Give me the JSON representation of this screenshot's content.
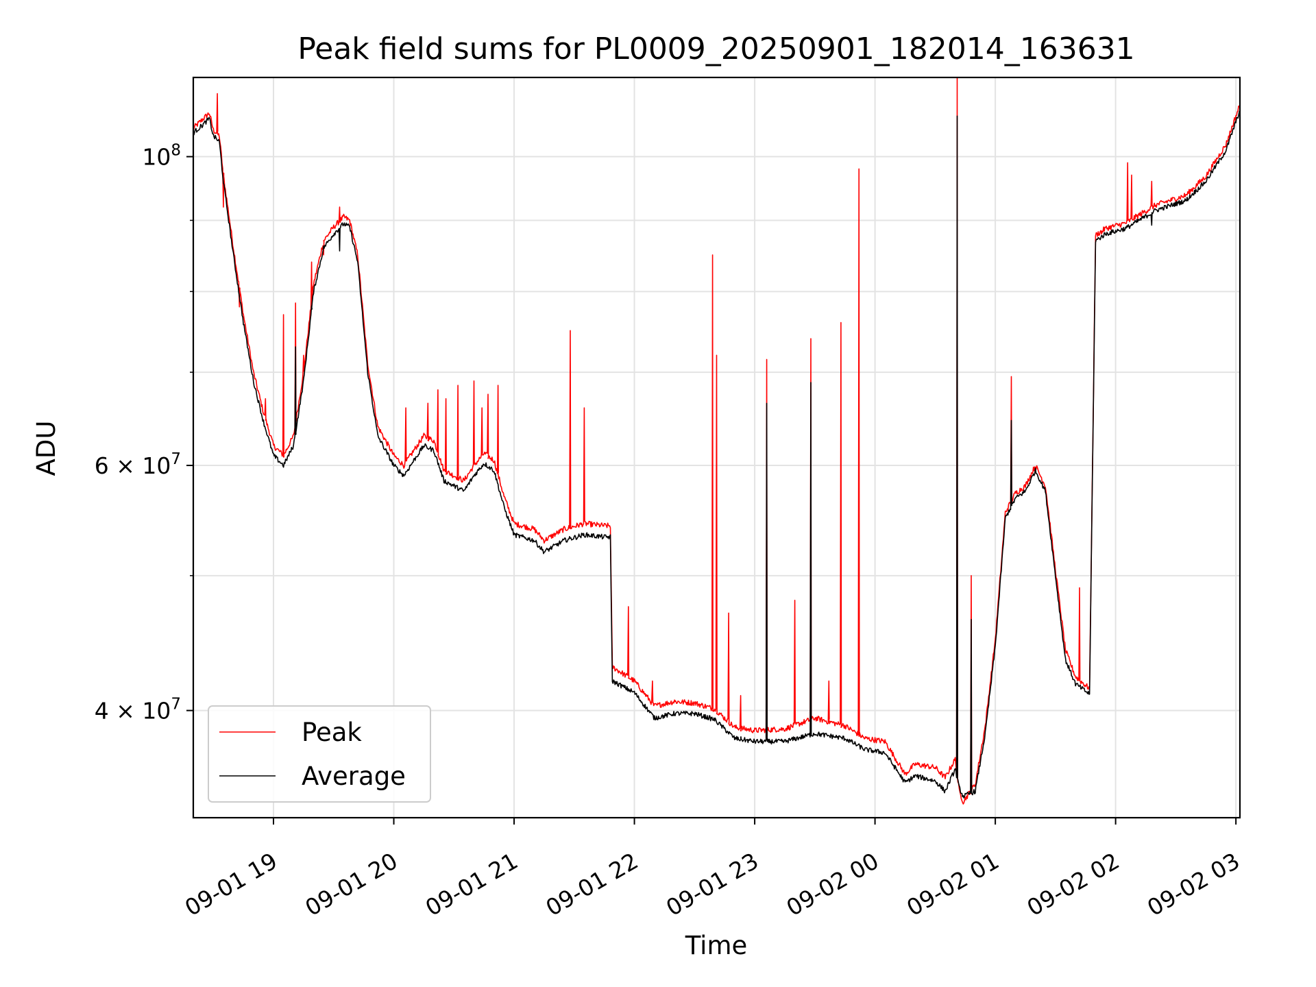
{
  "chart_data": {
    "type": "line",
    "title": "Peak field sums for PL0009_20250901_182014_163631",
    "xlabel": "Time",
    "ylabel": "ADU",
    "yscale": "log",
    "ylim": [
      33500000,
      114000000
    ],
    "xlim": [
      "2025-09-01 18:20",
      "2025-09-02 03:02"
    ],
    "grid": true,
    "legend_position": "lower-left",
    "x_ticks": [
      {
        "t": "2025-09-01 19:00",
        "label": "09-01 19"
      },
      {
        "t": "2025-09-01 20:00",
        "label": "09-01 20"
      },
      {
        "t": "2025-09-01 21:00",
        "label": "09-01 21"
      },
      {
        "t": "2025-09-01 22:00",
        "label": "09-01 22"
      },
      {
        "t": "2025-09-01 23:00",
        "label": "09-01 23"
      },
      {
        "t": "2025-09-02 00:00",
        "label": "09-02 00"
      },
      {
        "t": "2025-09-02 01:00",
        "label": "09-02 01"
      },
      {
        "t": "2025-09-02 02:00",
        "label": "09-02 02"
      },
      {
        "t": "2025-09-02 03:00",
        "label": "09-02 03"
      }
    ],
    "y_major_ticks": [
      {
        "v": 100000000,
        "base": "10",
        "exp": "8"
      },
      {
        "v": 60000000,
        "base": "6 × 10",
        "exp": "7"
      },
      {
        "v": 40000000,
        "base": "4 × 10",
        "exp": "7"
      }
    ],
    "y_minor_ticks": [
      90000000,
      80000000,
      70000000,
      50000000
    ],
    "series": [
      {
        "name": "Average",
        "color": "#000000",
        "points": [
          [
            "2025-09-01 18:20",
            104000000
          ],
          [
            "2025-09-01 18:25",
            105500000
          ],
          [
            "2025-09-01 18:28",
            106500000
          ],
          [
            "2025-09-01 18:30",
            103500000
          ],
          [
            "2025-09-01 18:33",
            102500000
          ],
          [
            "2025-09-01 18:35",
            96000000
          ],
          [
            "2025-09-01 18:40",
            85000000
          ],
          [
            "2025-09-01 18:45",
            76000000
          ],
          [
            "2025-09-01 18:50",
            69000000
          ],
          [
            "2025-09-01 18:55",
            64500000
          ],
          [
            "2025-09-01 19:00",
            61000000
          ],
          [
            "2025-09-01 19:05",
            60000000
          ],
          [
            "2025-09-01 19:10",
            62000000
          ],
          [
            "2025-09-01 19:15",
            69000000
          ],
          [
            "2025-09-01 19:20",
            80000000
          ],
          [
            "2025-09-01 19:25",
            86000000
          ],
          [
            "2025-09-01 19:30",
            88000000
          ],
          [
            "2025-09-01 19:35",
            89500000
          ],
          [
            "2025-09-01 19:38",
            89000000
          ],
          [
            "2025-09-01 19:42",
            84000000
          ],
          [
            "2025-09-01 19:47",
            70000000
          ],
          [
            "2025-09-01 19:52",
            63000000
          ],
          [
            "2025-09-01 20:00",
            60000000
          ],
          [
            "2025-09-01 20:05",
            59000000
          ],
          [
            "2025-09-01 20:10",
            60500000
          ],
          [
            "2025-09-01 20:15",
            62000000
          ],
          [
            "2025-09-01 20:20",
            61500000
          ],
          [
            "2025-09-01 20:25",
            58500000
          ],
          [
            "2025-09-01 20:30",
            58000000
          ],
          [
            "2025-09-01 20:35",
            57500000
          ],
          [
            "2025-09-01 20:40",
            59000000
          ],
          [
            "2025-09-01 20:45",
            60200000
          ],
          [
            "2025-09-01 20:50",
            59500000
          ],
          [
            "2025-09-01 20:55",
            56000000
          ],
          [
            "2025-09-01 21:00",
            53500000
          ],
          [
            "2025-09-01 21:10",
            53000000
          ],
          [
            "2025-09-01 21:15",
            52000000
          ],
          [
            "2025-09-01 21:25",
            53000000
          ],
          [
            "2025-09-01 21:35",
            53500000
          ],
          [
            "2025-09-01 21:45",
            53300000
          ],
          [
            "2025-09-01 21:48",
            53300000
          ],
          [
            "2025-09-01 21:49",
            42000000
          ],
          [
            "2025-09-01 22:00",
            41200000
          ],
          [
            "2025-09-01 22:10",
            39500000
          ],
          [
            "2025-09-01 22:20",
            39800000
          ],
          [
            "2025-09-01 22:30",
            39800000
          ],
          [
            "2025-09-01 22:40",
            39400000
          ],
          [
            "2025-09-01 22:50",
            38200000
          ],
          [
            "2025-09-01 23:00",
            38000000
          ],
          [
            "2025-09-01 23:15",
            38000000
          ],
          [
            "2025-09-01 23:30",
            38500000
          ],
          [
            "2025-09-01 23:45",
            38200000
          ],
          [
            "2025-09-01 23:55",
            37500000
          ],
          [
            "2025-09-02 00:05",
            37300000
          ],
          [
            "2025-09-02 00:15",
            35500000
          ],
          [
            "2025-09-02 00:20",
            35900000
          ],
          [
            "2025-09-02 00:30",
            35600000
          ],
          [
            "2025-09-02 00:35",
            35000000
          ],
          [
            "2025-09-02 00:40",
            36300000
          ],
          [
            "2025-09-02 00:42",
            35200000
          ],
          [
            "2025-09-02 00:44",
            34700000
          ],
          [
            "2025-09-02 00:50",
            35000000
          ],
          [
            "2025-09-02 00:55",
            38500000
          ],
          [
            "2025-09-02 01:00",
            44500000
          ],
          [
            "2025-09-02 01:05",
            55000000
          ],
          [
            "2025-09-02 01:10",
            56800000
          ],
          [
            "2025-09-02 01:15",
            57500000
          ],
          [
            "2025-09-02 01:20",
            59500000
          ],
          [
            "2025-09-02 01:25",
            57500000
          ],
          [
            "2025-09-02 01:30",
            50000000
          ],
          [
            "2025-09-02 01:35",
            43500000
          ],
          [
            "2025-09-02 01:40",
            41800000
          ],
          [
            "2025-09-02 01:45",
            41300000
          ],
          [
            "2025-09-02 01:47",
            41100000
          ],
          [
            "2025-09-02 01:50",
            87000000
          ],
          [
            "2025-09-02 01:55",
            88000000
          ],
          [
            "2025-09-02 02:05",
            88800000
          ],
          [
            "2025-09-02 02:20",
            91500000
          ],
          [
            "2025-09-02 02:35",
            93000000
          ],
          [
            "2025-09-02 02:45",
            96000000
          ],
          [
            "2025-09-02 02:55",
            101000000
          ],
          [
            "2025-09-02 03:02",
            108000000
          ]
        ]
      },
      {
        "name": "Peak",
        "color": "#ff0000",
        "points": [
          [
            "2025-09-01 18:20",
            104800000
          ],
          [
            "2025-09-01 18:25",
            106500000
          ],
          [
            "2025-09-01 18:28",
            107500000
          ],
          [
            "2025-09-01 18:30",
            104500000
          ],
          [
            "2025-09-01 18:33",
            103500000
          ],
          [
            "2025-09-01 18:35",
            97000000
          ],
          [
            "2025-09-01 18:40",
            86000000
          ],
          [
            "2025-09-01 18:45",
            77000000
          ],
          [
            "2025-09-01 18:50",
            70000000
          ],
          [
            "2025-09-01 18:55",
            65500000
          ],
          [
            "2025-09-01 19:00",
            62000000
          ],
          [
            "2025-09-01 19:05",
            61000000
          ],
          [
            "2025-09-01 19:10",
            63000000
          ],
          [
            "2025-09-01 19:15",
            70000000
          ],
          [
            "2025-09-01 19:20",
            81000000
          ],
          [
            "2025-09-01 19:25",
            87000000
          ],
          [
            "2025-09-01 19:30",
            89000000
          ],
          [
            "2025-09-01 19:35",
            90500000
          ],
          [
            "2025-09-01 19:38",
            90000000
          ],
          [
            "2025-09-01 19:42",
            85000000
          ],
          [
            "2025-09-01 19:47",
            71000000
          ],
          [
            "2025-09-01 19:52",
            64000000
          ],
          [
            "2025-09-01 20:00",
            61000000
          ],
          [
            "2025-09-01 20:05",
            60000000
          ],
          [
            "2025-09-01 20:10",
            61500000
          ],
          [
            "2025-09-01 20:15",
            63000000
          ],
          [
            "2025-09-01 20:20",
            62500000
          ],
          [
            "2025-09-01 20:25",
            59500000
          ],
          [
            "2025-09-01 20:30",
            59000000
          ],
          [
            "2025-09-01 20:35",
            58500000
          ],
          [
            "2025-09-01 20:40",
            60000000
          ],
          [
            "2025-09-01 20:45",
            61200000
          ],
          [
            "2025-09-01 20:50",
            60500000
          ],
          [
            "2025-09-01 20:55",
            57000000
          ],
          [
            "2025-09-01 21:00",
            54500000
          ],
          [
            "2025-09-01 21:10",
            54000000
          ],
          [
            "2025-09-01 21:15",
            53000000
          ],
          [
            "2025-09-01 21:25",
            54000000
          ],
          [
            "2025-09-01 21:35",
            54500000
          ],
          [
            "2025-09-01 21:45",
            54300000
          ],
          [
            "2025-09-01 21:48",
            54300000
          ],
          [
            "2025-09-01 21:49",
            43000000
          ],
          [
            "2025-09-01 22:00",
            42000000
          ],
          [
            "2025-09-01 22:10",
            40300000
          ],
          [
            "2025-09-01 22:20",
            40600000
          ],
          [
            "2025-09-01 22:30",
            40500000
          ],
          [
            "2025-09-01 22:40",
            40100000
          ],
          [
            "2025-09-01 22:50",
            38900000
          ],
          [
            "2025-09-01 23:00",
            38700000
          ],
          [
            "2025-09-01 23:15",
            38800000
          ],
          [
            "2025-09-01 23:30",
            39500000
          ],
          [
            "2025-09-01 23:45",
            39000000
          ],
          [
            "2025-09-01 23:55",
            38200000
          ],
          [
            "2025-09-02 00:05",
            38000000
          ],
          [
            "2025-09-02 00:15",
            36000000
          ],
          [
            "2025-09-02 00:20",
            36600000
          ],
          [
            "2025-09-02 00:30",
            36400000
          ],
          [
            "2025-09-02 00:35",
            35800000
          ],
          [
            "2025-09-02 00:40",
            36900000
          ],
          [
            "2025-09-02 00:42",
            35000000
          ],
          [
            "2025-09-02 00:44",
            34400000
          ],
          [
            "2025-09-02 00:50",
            35400000
          ],
          [
            "2025-09-02 00:55",
            39000000
          ],
          [
            "2025-09-02 01:00",
            45000000
          ],
          [
            "2025-09-02 01:05",
            55500000
          ],
          [
            "2025-09-02 01:10",
            57300000
          ],
          [
            "2025-09-02 01:15",
            58000000
          ],
          [
            "2025-09-02 01:20",
            60000000
          ],
          [
            "2025-09-02 01:25",
            58000000
          ],
          [
            "2025-09-02 01:30",
            50500000
          ],
          [
            "2025-09-02 01:35",
            44200000
          ],
          [
            "2025-09-02 01:40",
            42300000
          ],
          [
            "2025-09-02 01:45",
            41700000
          ],
          [
            "2025-09-02 01:47",
            41500000
          ],
          [
            "2025-09-02 01:50",
            87800000
          ],
          [
            "2025-09-02 01:55",
            88800000
          ],
          [
            "2025-09-02 02:05",
            89600000
          ],
          [
            "2025-09-02 02:20",
            92300000
          ],
          [
            "2025-09-02 02:35",
            93800000
          ],
          [
            "2025-09-02 02:45",
            96800000
          ],
          [
            "2025-09-02 02:55",
            102000000
          ],
          [
            "2025-09-02 03:02",
            109000000
          ]
        ],
        "spikes": [
          [
            "2025-09-01 18:32",
            111000000
          ],
          [
            "2025-09-01 18:35",
            92000000
          ],
          [
            "2025-09-01 18:43",
            78000000
          ],
          [
            "2025-09-01 18:56",
            67000000
          ],
          [
            "2025-09-01 19:05",
            77000000
          ],
          [
            "2025-09-01 19:11",
            78500000
          ],
          [
            "2025-09-01 19:15",
            72000000
          ],
          [
            "2025-09-01 19:19",
            84000000
          ],
          [
            "2025-09-01 19:25",
            85000000
          ],
          [
            "2025-09-01 19:33",
            92000000
          ],
          [
            "2025-09-01 20:06",
            66000000
          ],
          [
            "2025-09-01 20:17",
            66500000
          ],
          [
            "2025-09-01 20:22",
            68000000
          ],
          [
            "2025-09-01 20:26",
            67000000
          ],
          [
            "2025-09-01 20:32",
            68500000
          ],
          [
            "2025-09-01 20:40",
            69000000
          ],
          [
            "2025-09-01 20:44",
            66000000
          ],
          [
            "2025-09-01 20:47",
            67500000
          ],
          [
            "2025-09-01 20:52",
            68500000
          ],
          [
            "2025-09-01 21:28",
            75000000
          ],
          [
            "2025-09-01 21:35",
            66000000
          ],
          [
            "2025-09-01 21:57",
            47500000
          ],
          [
            "2025-09-01 22:09",
            42000000
          ],
          [
            "2025-09-01 22:20",
            40700000
          ],
          [
            "2025-09-01 22:39",
            85000000
          ],
          [
            "2025-09-01 22:41",
            72000000
          ],
          [
            "2025-09-01 22:47",
            47000000
          ],
          [
            "2025-09-01 22:53",
            41000000
          ],
          [
            "2025-09-01 23:06",
            71500000
          ],
          [
            "2025-09-01 23:20",
            48000000
          ],
          [
            "2025-09-01 23:28",
            74000000
          ],
          [
            "2025-09-01 23:37",
            42000000
          ],
          [
            "2025-09-01 23:43",
            76000000
          ],
          [
            "2025-09-01 23:52",
            98000000
          ],
          [
            "2025-09-02 00:41",
            115000000
          ],
          [
            "2025-09-02 00:48",
            50000000
          ],
          [
            "2025-09-02 01:08",
            69500000
          ],
          [
            "2025-09-02 01:42",
            49000000
          ],
          [
            "2025-09-02 01:53",
            88000000
          ],
          [
            "2025-09-02 02:06",
            99000000
          ],
          [
            "2025-09-02 02:08",
            97000000
          ],
          [
            "2025-09-02 02:18",
            96000000
          ]
        ]
      }
    ]
  }
}
